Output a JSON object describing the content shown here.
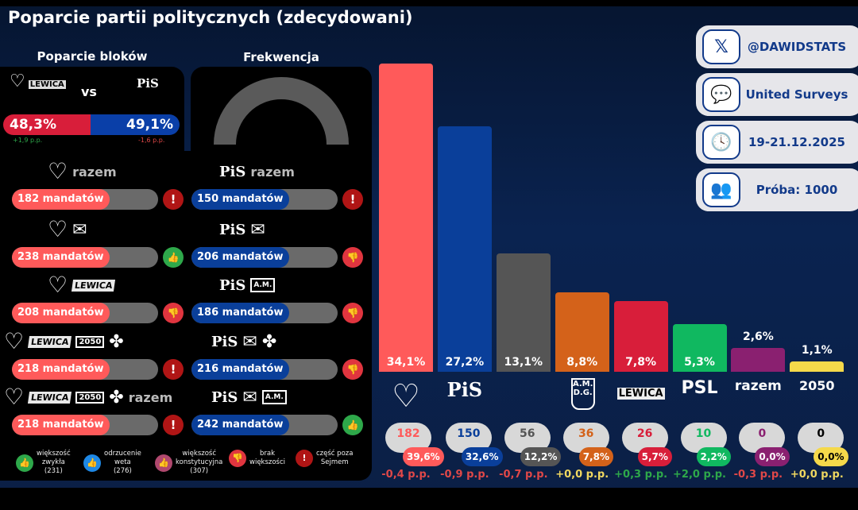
{
  "title": "Poparcie partii politycznych (zdecydowani)",
  "blocks": {
    "title": "Poparcie bloków",
    "vs": "vs",
    "left": {
      "value": "48,3%",
      "change": "+1,9 p.p.",
      "share": 48.3,
      "color": "#d81e3a"
    },
    "right": {
      "value": "49,1%",
      "change": "-1,6 p.p.",
      "share": 49.1,
      "color": "#0a3fa8"
    }
  },
  "turnout": {
    "title": "Frekwencja"
  },
  "coalitions_left": [
    {
      "logos": [
        "heart",
        "razem"
      ],
      "label": "182 mandatów",
      "status": "exclamation-icon"
    },
    {
      "logos": [
        "heart",
        "konfederacja"
      ],
      "label": "238 mandatów",
      "status": "thumbs-up-icon"
    },
    {
      "logos": [
        "heart",
        "LEWICA"
      ],
      "label": "208 mandatów",
      "status": "thumbs-down-icon"
    },
    {
      "logos": [
        "heart",
        "LEWICA",
        "2050",
        "psl"
      ],
      "label": "218 mandatów",
      "status": "exclamation-icon"
    },
    {
      "logos": [
        "heart",
        "LEWICA",
        "2050",
        "psl",
        "razem"
      ],
      "label": "218 mandatów",
      "status": "exclamation-icon"
    }
  ],
  "coalitions_right": [
    {
      "logos": [
        "PiS",
        "razem"
      ],
      "label": "150 mandatów",
      "status": "exclamation-icon"
    },
    {
      "logos": [
        "PiS",
        "konfederacja"
      ],
      "label": "206 mandatów",
      "status": "thumbs-down-icon"
    },
    {
      "logos": [
        "PiS",
        "korona"
      ],
      "label": "186 mandatów",
      "status": "thumbs-down-icon"
    },
    {
      "logos": [
        "PiS",
        "konfederacja",
        "psl"
      ],
      "label": "216 mandatów",
      "status": "thumbs-down-icon"
    },
    {
      "logos": [
        "PiS",
        "konfederacja",
        "korona"
      ],
      "label": "242 mandatów",
      "status": "thumbs-up-icon"
    }
  ],
  "legend": [
    {
      "icon": "thumbs-up-icon",
      "color": "#2ea84a",
      "text": [
        "większość",
        "zwykła",
        "(231)"
      ]
    },
    {
      "icon": "thumbs-up-icon",
      "color": "#1e88e5",
      "text": [
        "odrzucenie",
        "weta",
        "(276)"
      ]
    },
    {
      "icon": "thumbs-up-icon",
      "color": "#b0486e",
      "text": [
        "większość",
        "konstytucyjna",
        "(307)"
      ]
    },
    {
      "icon": "thumbs-down-icon",
      "color": "#e0353f",
      "text": [
        "brak",
        "większości"
      ]
    },
    {
      "icon": "exclamation-icon",
      "color": "#b01515",
      "text": [
        "część poza",
        "Sejmem"
      ]
    }
  ],
  "info": [
    {
      "icon": "x-logo-icon",
      "text": "@DAWIDSTATS"
    },
    {
      "icon": "chat-icon",
      "text": "United Surveys"
    },
    {
      "icon": "clock-icon",
      "text": "19-21.12.2025"
    },
    {
      "icon": "people-icon",
      "text": "Próba: 1000"
    }
  ],
  "chart_data": {
    "type": "bar",
    "categories": [
      "KO",
      "PiS",
      "Konfederacja",
      "Korona",
      "Lewica",
      "PSL",
      "Razem",
      "Polska 2050"
    ],
    "logo_text": [
      "♡",
      "PiS",
      "",
      "A.M. D.G.",
      "LEWICA",
      "PSL",
      "razem",
      "2050"
    ],
    "values": [
      34.1,
      27.2,
      13.1,
      8.8,
      7.8,
      5.3,
      2.6,
      1.1
    ],
    "labels": [
      "34,1%",
      "27,2%",
      "13,1%",
      "8,8%",
      "7,8%",
      "5,3%",
      "2,6%",
      "1,1%"
    ],
    "colors": [
      "#ff5a5a",
      "#0a3f9a",
      "#555555",
      "#d4621a",
      "#d81e3a",
      "#10b860",
      "#8a2070",
      "#f5d94a"
    ],
    "seats": [
      "182",
      "150",
      "56",
      "36",
      "26",
      "10",
      "0",
      "0"
    ],
    "seat_share": [
      "39,6%",
      "32,6%",
      "12,2%",
      "7,8%",
      "5,7%",
      "2,2%",
      "0,0%",
      "0,0%"
    ],
    "changes": [
      "-0,4 p.p.",
      "-0,9 p.p.",
      "-0,7 p.p.",
      "+0,0 p.p.",
      "+0,3 p.p.",
      "+2,0 p.p.",
      "-0,3 p.p.",
      "+0,0 p.p."
    ],
    "change_colors": [
      "#e04848",
      "#e04848",
      "#e04848",
      "#f0d860",
      "#2ea84a",
      "#2ea84a",
      "#e04848",
      "#f0d860"
    ],
    "ylim": [
      0,
      34.1
    ]
  }
}
